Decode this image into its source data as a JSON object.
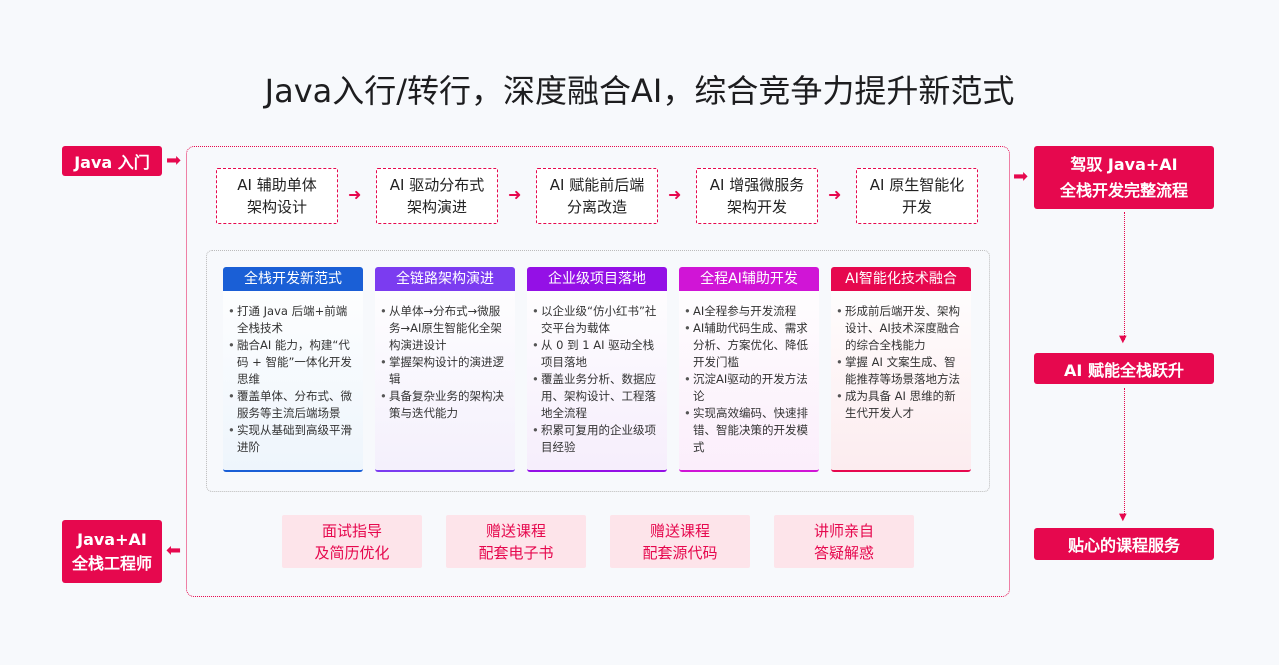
{
  "title": "Java入行/转行，深度融合AI，综合竞争力提升新范式",
  "left": {
    "start": "Java 入门",
    "end": "Java+AI\n全栈工程师"
  },
  "right": {
    "top": "驾驭 Java+AI\n全栈开发完整流程",
    "middle": "AI 赋能全栈跃升",
    "bottom": "贴心的课程服务"
  },
  "steps": [
    "AI 辅助单体\n架构设计",
    "AI 驱动分布式\n架构演进",
    "AI 赋能前后端\n分离改造",
    "AI 增强微服务\n架构开发",
    "AI 原生智能化\n开发"
  ],
  "cards": [
    {
      "title": "全栈开发新范式",
      "color": "#1a5fd6",
      "bg": "#eef5fc",
      "items": [
        "打通 Java 后端+前端全栈技术",
        "融合AI 能力，构建“代码 + 智能”一体化开发思维",
        "覆盖单体、分布式、微服务等主流后端场景",
        "实现从基础到高级平滑进阶"
      ]
    },
    {
      "title": "全链路架构演进",
      "color": "#7b3cf0",
      "bg": "#f4f0fc",
      "items": [
        "从单体→分布式→微服务→AI原生智能化全架构演进设计",
        "掌握架构设计的演进逻辑",
        "具备复杂业务的架构决策与迭代能力"
      ]
    },
    {
      "title": "企业级项目落地",
      "color": "#9410e6",
      "bg": "#f6eefc",
      "items": [
        "以企业级“仿小红书”社交平台为载体",
        "从 0 到 1 AI 驱动全栈项目落地",
        "覆盖业务分析、数据应用、架构设计、工程落地全流程",
        "积累可复用的企业级项目经验"
      ]
    },
    {
      "title": "全程AI辅助开发",
      "color": "#d015d6",
      "bg": "#fbeefb",
      "items": [
        "AI全程参与开发流程",
        "AI辅助代码生成、需求分析、方案优化、降低开发门槛",
        "沉淀AI驱动的开发方法论",
        "实现高效编码、快速排错、智能决策的开发模式"
      ]
    },
    {
      "title": "AI智能化技术融合",
      "color": "#e6084e",
      "bg": "#fcecef",
      "items": [
        "形成前后端开发、架构设计、AI技术深度融合的综合全栈能力",
        "掌握 AI 文案生成、智能推荐等场景落地方法",
        "成为具备 AI 思维的新生代开发人才"
      ]
    }
  ],
  "services": [
    "面试指导\n及简历优化",
    "赠送课程\n配套电子书",
    "赠送课程\n配套源代码",
    "讲师亲自\n答疑解惑"
  ]
}
